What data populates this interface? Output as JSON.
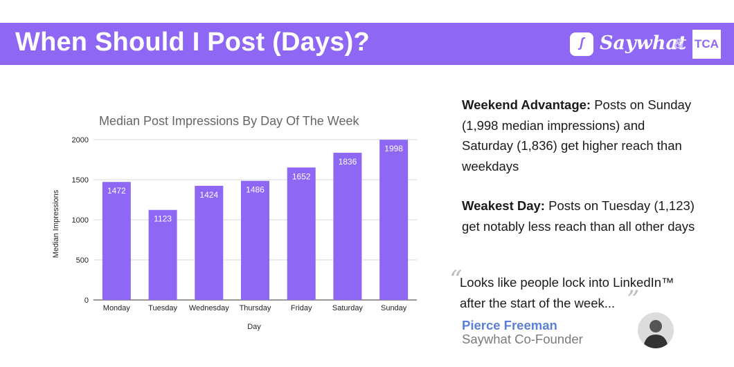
{
  "header": {
    "title": "When Should I Post (Days)?",
    "brand_name": "Saywhat",
    "ampersand": "&",
    "partner_logo": "TCA",
    "background_color": "#8e67f5"
  },
  "chart_data": {
    "type": "bar",
    "title": "Median Post Impressions By Day Of The Week",
    "xlabel": "Day",
    "ylabel": "Median Impressions",
    "categories": [
      "Monday",
      "Tuesday",
      "Wednesday",
      "Thursday",
      "Friday",
      "Saturday",
      "Sunday"
    ],
    "values": [
      1472,
      1123,
      1424,
      1486,
      1652,
      1836,
      1998
    ],
    "ylim": [
      0,
      2000
    ],
    "yticks": [
      0,
      500,
      1000,
      1500,
      2000
    ],
    "grid": true,
    "legend": "none",
    "bar_color": "#8e67f5",
    "data_labels": true
  },
  "insights": [
    {
      "heading": "Weekend Advantage:",
      "text": " Posts on Sunday (1,998 median impressions) and Saturday (1,836) get higher reach than weekdays"
    },
    {
      "heading": "Weakest Day:",
      "text": " Posts on Tuesday (1,123) get notably less reach than all other days"
    }
  ],
  "quote": {
    "open_mark": "“",
    "text": "Looks like people lock into LinkedIn™ after the start of the week...",
    "close_mark": "”",
    "author": "Pierce Freeman",
    "role": "Saywhat Co-Founder"
  }
}
